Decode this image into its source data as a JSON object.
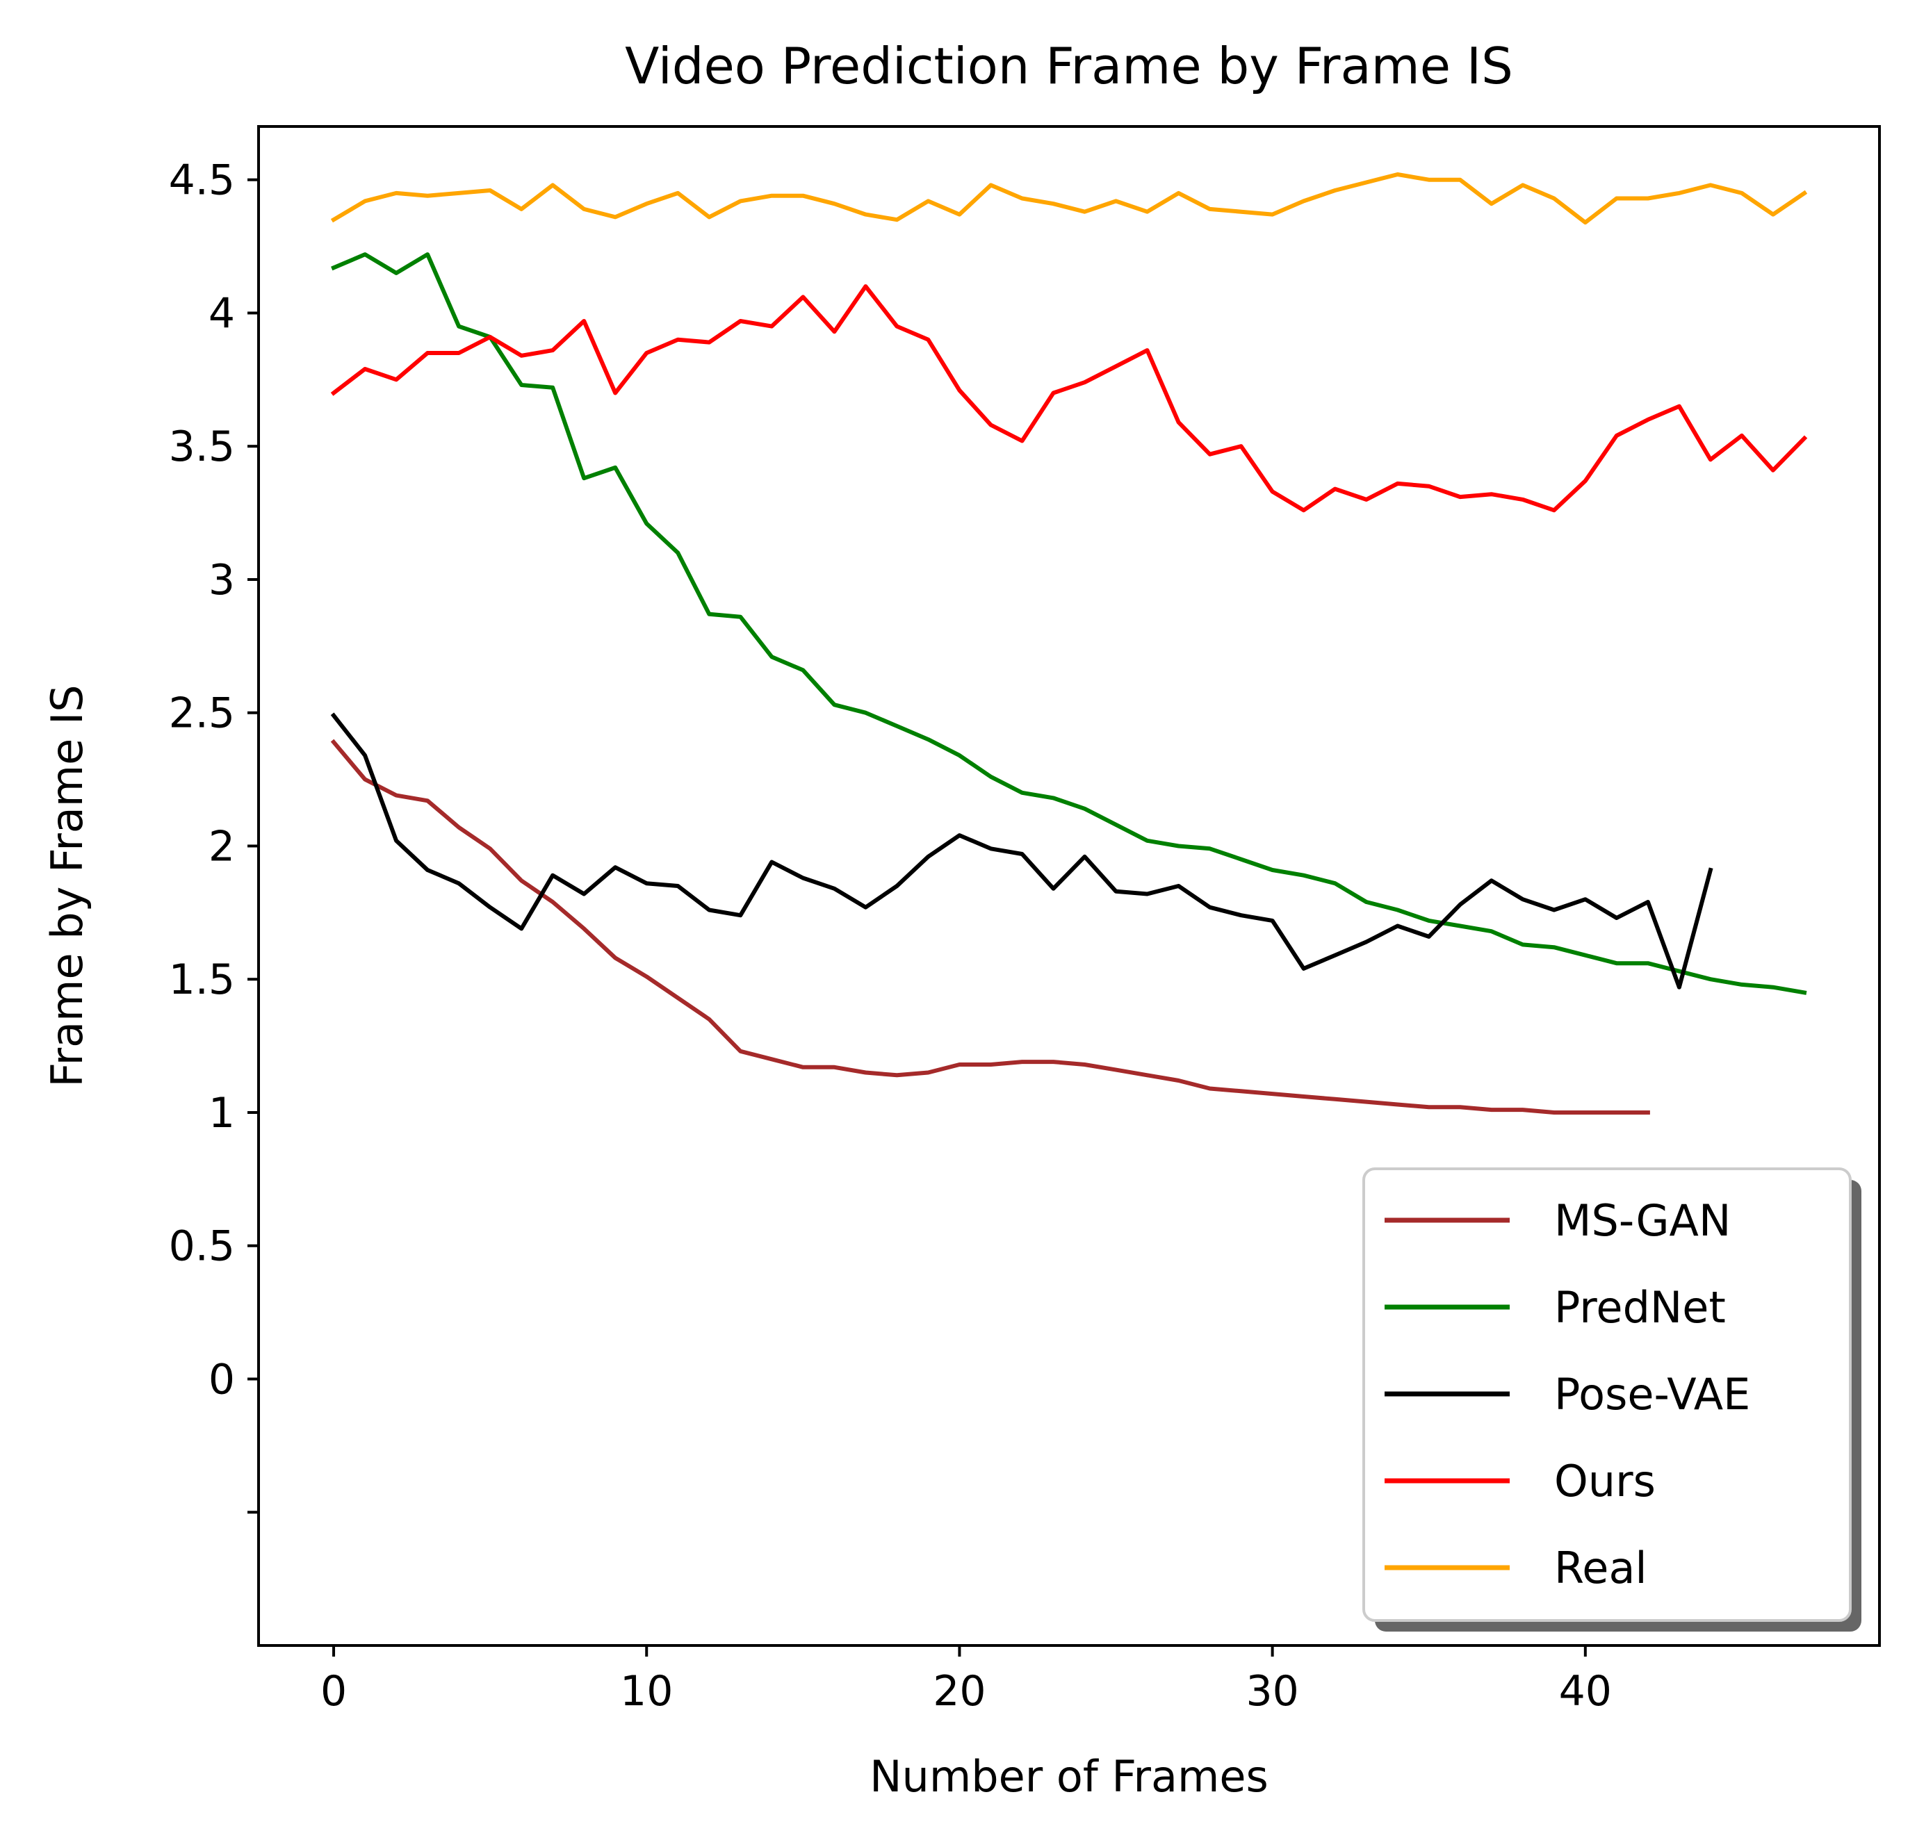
{
  "chart_data": {
    "type": "line",
    "title": "Video Prediction Frame by Frame IS",
    "xlabel": "Number of Frames",
    "ylabel": "Frame by Frame IS",
    "xlim": [
      -2.4,
      49.4
    ],
    "ylim": [
      -1.0,
      4.7
    ],
    "grid": false,
    "legend_position": "bottom-right",
    "x_ticks": [
      {
        "value": 0,
        "label": "0"
      },
      {
        "value": 10,
        "label": "10"
      },
      {
        "value": 20,
        "label": "20"
      },
      {
        "value": 30,
        "label": "30"
      },
      {
        "value": 40,
        "label": "40"
      }
    ],
    "y_ticks": [
      {
        "value": -0.5,
        "label": ""
      },
      {
        "value": 0,
        "label": "0"
      },
      {
        "value": 0.5,
        "label": "0.5"
      },
      {
        "value": 1,
        "label": "1"
      },
      {
        "value": 1.5,
        "label": "1.5"
      },
      {
        "value": 2,
        "label": "2"
      },
      {
        "value": 2.5,
        "label": "2.5"
      },
      {
        "value": 3,
        "label": "3"
      },
      {
        "value": 3.5,
        "label": "3.5"
      },
      {
        "value": 4,
        "label": "4"
      },
      {
        "value": 4.5,
        "label": "4.5"
      }
    ],
    "series": [
      {
        "name": "MS-GAN",
        "color": "#a52a2a",
        "values": [
          2.39,
          2.25,
          2.19,
          2.17,
          2.07,
          1.99,
          1.87,
          1.79,
          1.69,
          1.58,
          1.51,
          1.43,
          1.35,
          1.23,
          1.2,
          1.17,
          1.17,
          1.15,
          1.14,
          1.15,
          1.18,
          1.18,
          1.19,
          1.19,
          1.18,
          1.16,
          1.14,
          1.12,
          1.09,
          1.08,
          1.07,
          1.06,
          1.05,
          1.04,
          1.03,
          1.02,
          1.02,
          1.01,
          1.01,
          1.0,
          1.0,
          1.0,
          1.0
        ]
      },
      {
        "name": "PredNet",
        "color": "#008000",
        "values": [
          4.17,
          4.22,
          4.15,
          4.22,
          3.95,
          3.91,
          3.73,
          3.72,
          3.38,
          3.42,
          3.21,
          3.1,
          2.87,
          2.86,
          2.71,
          2.66,
          2.53,
          2.5,
          2.45,
          2.4,
          2.34,
          2.26,
          2.2,
          2.18,
          2.14,
          2.08,
          2.02,
          2.0,
          1.99,
          1.95,
          1.91,
          1.89,
          1.86,
          1.79,
          1.76,
          1.72,
          1.7,
          1.68,
          1.63,
          1.62,
          1.59,
          1.56,
          1.56,
          1.53,
          1.5,
          1.48,
          1.47,
          1.45
        ]
      },
      {
        "name": "Pose-VAE",
        "color": "#000000",
        "values": [
          2.49,
          2.34,
          2.02,
          1.91,
          1.86,
          1.77,
          1.69,
          1.89,
          1.82,
          1.92,
          1.86,
          1.85,
          1.76,
          1.74,
          1.94,
          1.88,
          1.84,
          1.77,
          1.85,
          1.96,
          2.04,
          1.99,
          1.97,
          1.84,
          1.96,
          1.83,
          1.82,
          1.85,
          1.77,
          1.74,
          1.72,
          1.54,
          1.59,
          1.64,
          1.7,
          1.66,
          1.78,
          1.87,
          1.8,
          1.76,
          1.8,
          1.73,
          1.79,
          1.47,
          1.91
        ]
      },
      {
        "name": "Ours",
        "color": "#ff0000",
        "values": [
          3.7,
          3.79,
          3.75,
          3.85,
          3.85,
          3.91,
          3.84,
          3.86,
          3.97,
          3.7,
          3.85,
          3.9,
          3.89,
          3.97,
          3.95,
          4.06,
          3.93,
          4.1,
          3.95,
          3.9,
          3.71,
          3.58,
          3.52,
          3.7,
          3.74,
          3.8,
          3.86,
          3.59,
          3.47,
          3.5,
          3.33,
          3.26,
          3.34,
          3.3,
          3.36,
          3.35,
          3.31,
          3.32,
          3.3,
          3.26,
          3.37,
          3.54,
          3.6,
          3.65,
          3.45,
          3.54,
          3.41,
          3.53
        ]
      },
      {
        "name": "Real",
        "color": "#ffa500",
        "values": [
          4.35,
          4.42,
          4.45,
          4.44,
          4.45,
          4.46,
          4.39,
          4.48,
          4.39,
          4.36,
          4.41,
          4.45,
          4.36,
          4.42,
          4.44,
          4.44,
          4.41,
          4.37,
          4.35,
          4.42,
          4.37,
          4.48,
          4.43,
          4.41,
          4.38,
          4.42,
          4.38,
          4.45,
          4.39,
          4.38,
          4.37,
          4.42,
          4.46,
          4.49,
          4.52,
          4.5,
          4.5,
          4.41,
          4.48,
          4.43,
          4.34,
          4.43,
          4.43,
          4.45,
          4.48,
          4.45,
          4.37,
          4.45
        ]
      }
    ]
  }
}
